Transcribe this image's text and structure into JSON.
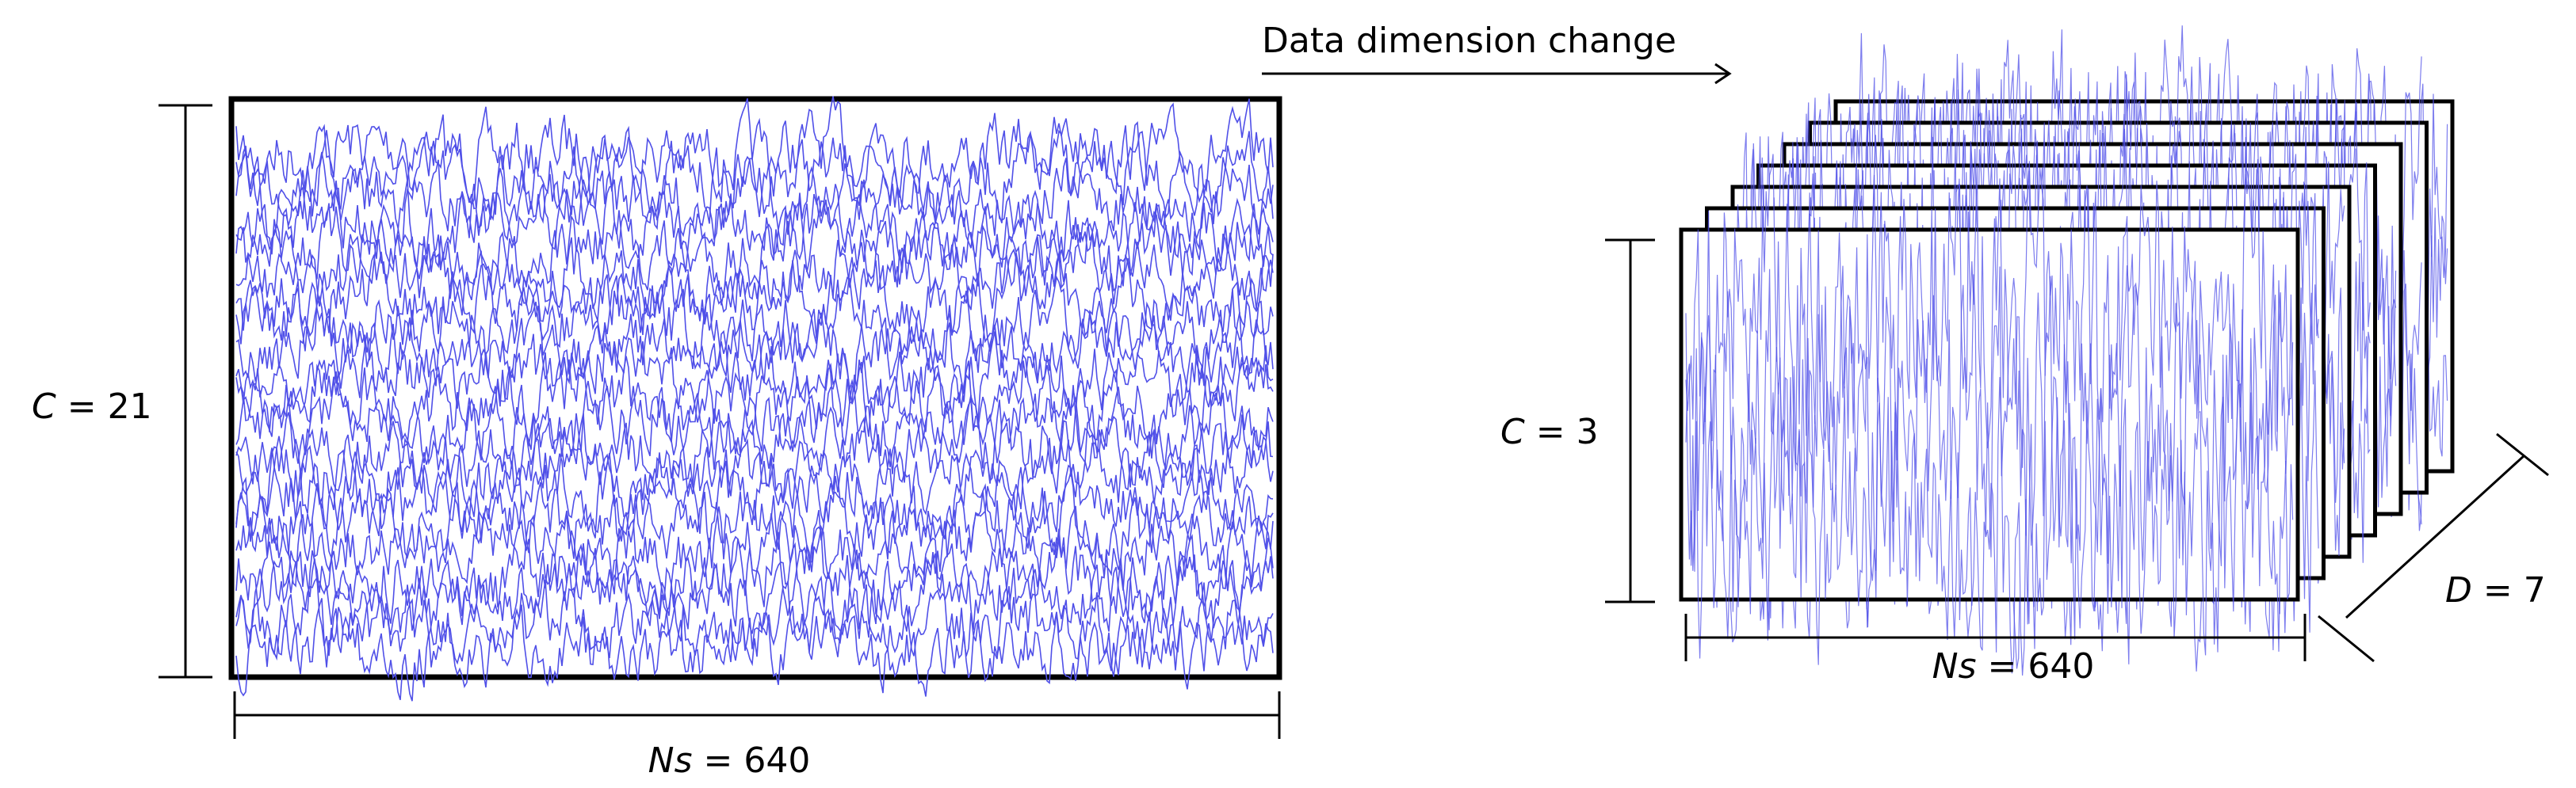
{
  "arrow_label": "Data dimension change",
  "left_panel": {
    "channels_var": "C",
    "channels_rest": " = 21",
    "channels_count": 21,
    "samples_var": "Ns",
    "samples_rest": " = 640",
    "samples_count": 640
  },
  "right_panel": {
    "channels_var": "C",
    "channels_rest": " = 3",
    "channels_count": 3,
    "samples_var": "Ns",
    "samples_rest": " = 640",
    "samples_count": 640,
    "depth_var": "D",
    "depth_rest": " = 7",
    "depth_count": 7
  },
  "colors": {
    "signal": "#5050e8",
    "frame": "#000000"
  }
}
